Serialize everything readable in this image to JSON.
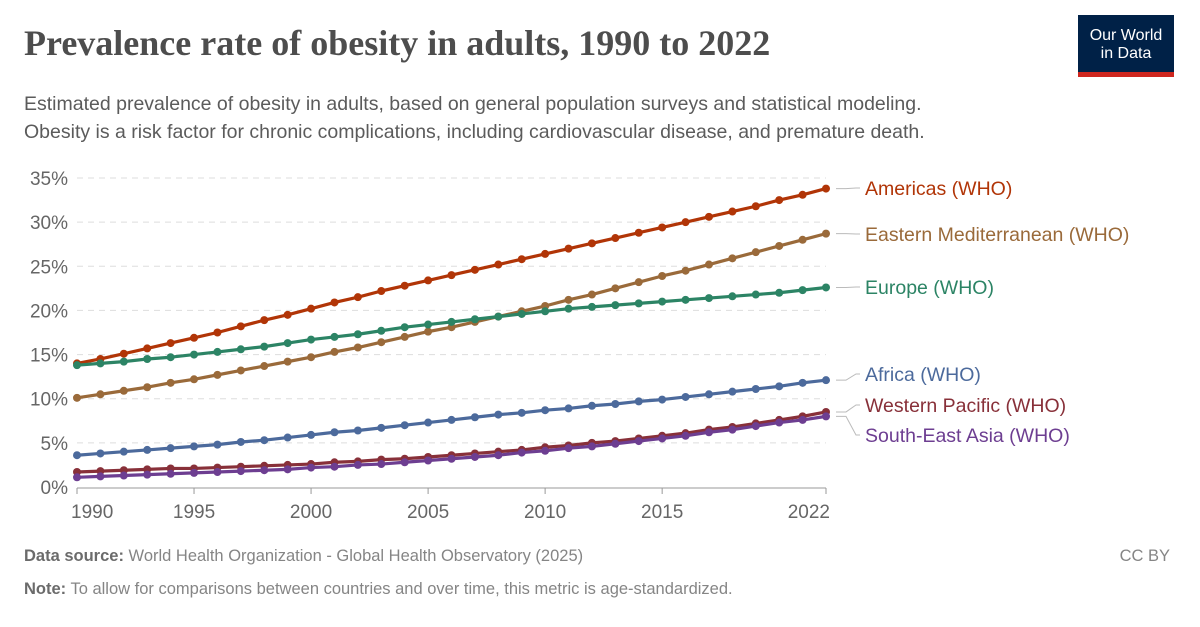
{
  "title": "Prevalence rate of obesity in adults, 1990 to 2022",
  "subtitle_lines": [
    "Estimated prevalence of obesity in adults, based on general population surveys and statistical modeling.",
    "Obesity is a risk factor for chronic complications, including cardiovascular disease, and premature death."
  ],
  "logo": {
    "line1": "Our World",
    "line2": "in Data"
  },
  "footer": {
    "source_label": "Data source:",
    "source_text": " World Health Organization - Global Health Observatory (2025)",
    "note_label": "Note:",
    "note_text": " To allow for comparisons between countries and over time, this metric is age-standardized.",
    "license": "CC BY"
  },
  "chart_data": {
    "type": "line",
    "title": "Prevalence rate of obesity in adults, 1990 to 2022",
    "xlim": [
      1990,
      2022
    ],
    "ylim": [
      0,
      35
    ],
    "x_ticks": [
      1990,
      1995,
      2000,
      2005,
      2010,
      2015,
      2022
    ],
    "y_ticks": [
      0,
      5,
      10,
      15,
      20,
      25,
      30,
      35
    ],
    "y_tick_labels": [
      "0%",
      "5%",
      "10%",
      "15%",
      "20%",
      "25%",
      "30%",
      "35%"
    ],
    "grid": "horizontal dashed",
    "legend": "inline labels at right",
    "x": [
      1990,
      1991,
      1992,
      1993,
      1994,
      1995,
      1996,
      1997,
      1998,
      1999,
      2000,
      2001,
      2002,
      2003,
      2004,
      2005,
      2006,
      2007,
      2008,
      2009,
      2010,
      2011,
      2012,
      2013,
      2014,
      2015,
      2016,
      2017,
      2018,
      2019,
      2020,
      2021,
      2022
    ],
    "series": [
      {
        "name": "Americas (WHO)",
        "color": "#b13507",
        "values": [
          14.0,
          14.5,
          15.1,
          15.7,
          16.3,
          16.9,
          17.5,
          18.2,
          18.9,
          19.5,
          20.2,
          20.9,
          21.5,
          22.2,
          22.8,
          23.4,
          24.0,
          24.6,
          25.2,
          25.8,
          26.4,
          27.0,
          27.6,
          28.2,
          28.8,
          29.4,
          30.0,
          30.6,
          31.2,
          31.8,
          32.5,
          33.1,
          33.8
        ]
      },
      {
        "name": "Eastern Mediterranean (WHO)",
        "color": "#9a6a3a",
        "values": [
          10.1,
          10.5,
          10.9,
          11.3,
          11.8,
          12.2,
          12.7,
          13.2,
          13.7,
          14.2,
          14.7,
          15.3,
          15.8,
          16.4,
          17.0,
          17.6,
          18.1,
          18.7,
          19.3,
          19.9,
          20.5,
          21.2,
          21.8,
          22.5,
          23.2,
          23.9,
          24.5,
          25.2,
          25.9,
          26.6,
          27.3,
          28.0,
          28.7
        ]
      },
      {
        "name": "Europe (WHO)",
        "color": "#2c8465",
        "values": [
          13.8,
          14.0,
          14.2,
          14.5,
          14.7,
          15.0,
          15.3,
          15.6,
          15.9,
          16.3,
          16.7,
          17.0,
          17.3,
          17.7,
          18.1,
          18.4,
          18.7,
          19.0,
          19.3,
          19.6,
          19.9,
          20.2,
          20.4,
          20.6,
          20.8,
          21.0,
          21.2,
          21.4,
          21.6,
          21.8,
          22.0,
          22.3,
          22.6
        ]
      },
      {
        "name": "Africa (WHO)",
        "color": "#4c6a9c",
        "values": [
          3.6,
          3.8,
          4.0,
          4.2,
          4.4,
          4.6,
          4.8,
          5.1,
          5.3,
          5.6,
          5.9,
          6.2,
          6.4,
          6.7,
          7.0,
          7.3,
          7.6,
          7.9,
          8.2,
          8.4,
          8.7,
          8.9,
          9.2,
          9.4,
          9.7,
          9.9,
          10.2,
          10.5,
          10.8,
          11.1,
          11.4,
          11.8,
          12.1
        ]
      },
      {
        "name": "Western Pacific (WHO)",
        "color": "#883039",
        "values": [
          1.7,
          1.8,
          1.9,
          2.0,
          2.1,
          2.1,
          2.2,
          2.3,
          2.4,
          2.5,
          2.6,
          2.8,
          2.9,
          3.1,
          3.2,
          3.4,
          3.6,
          3.8,
          4.0,
          4.2,
          4.5,
          4.7,
          5.0,
          5.2,
          5.5,
          5.8,
          6.1,
          6.5,
          6.8,
          7.2,
          7.6,
          8.0,
          8.5
        ]
      },
      {
        "name": "South-East Asia (WHO)",
        "color": "#6d3e91",
        "values": [
          1.1,
          1.2,
          1.3,
          1.4,
          1.5,
          1.6,
          1.7,
          1.8,
          1.9,
          2.0,
          2.2,
          2.3,
          2.5,
          2.6,
          2.8,
          3.0,
          3.2,
          3.4,
          3.6,
          3.9,
          4.1,
          4.4,
          4.6,
          4.9,
          5.2,
          5.5,
          5.8,
          6.2,
          6.5,
          6.9,
          7.3,
          7.6,
          8.0
        ]
      }
    ]
  }
}
